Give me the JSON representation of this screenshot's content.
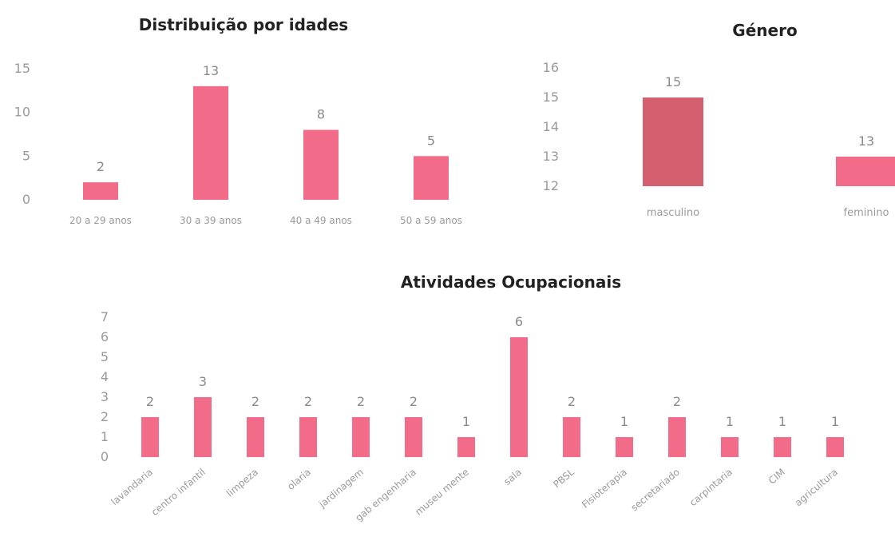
{
  "chart_data": [
    {
      "type": "bar",
      "title": "Distribuição por idades",
      "categories": [
        "20 a 29 anos",
        "30 a 39 anos",
        "40 a 49 anos",
        "50 a 59 anos"
      ],
      "values": [
        2,
        13,
        8,
        5
      ],
      "data_labels": [
        "2",
        "13",
        "8",
        "5"
      ],
      "yticks": [
        "0",
        "5",
        "10",
        "15"
      ],
      "ylim": [
        0,
        15
      ],
      "color": "#f26b88",
      "grid": false,
      "legend": "none"
    },
    {
      "type": "bar",
      "title": "Género",
      "categories": [
        "masculino",
        "feminino"
      ],
      "values": [
        15,
        13
      ],
      "data_labels": [
        "15",
        "13"
      ],
      "yticks": [
        "12",
        "13",
        "14",
        "15",
        "16"
      ],
      "ylim": [
        12,
        16
      ],
      "colors": [
        "#d4606f",
        "#f26b88"
      ],
      "grid": false,
      "legend": "none"
    },
    {
      "type": "bar",
      "title": "Atividades Ocupacionais",
      "categories": [
        "lavandaria",
        "centro infantil",
        "limpeza",
        "olaria",
        "jardinagem",
        "gab engenharia",
        "museu mente",
        "sala",
        "PBSL",
        "Fisioterapia",
        "secretariado",
        "carpintaria",
        "CIM",
        "agricultura"
      ],
      "values": [
        2,
        3,
        2,
        2,
        2,
        2,
        1,
        6,
        2,
        1,
        2,
        1,
        1,
        1
      ],
      "data_labels": [
        "2",
        "3",
        "2",
        "2",
        "2",
        "2",
        "1",
        "6",
        "2",
        "1",
        "2",
        "1",
        "1",
        "1"
      ],
      "yticks": [
        "0",
        "1",
        "2",
        "3",
        "4",
        "5",
        "6",
        "7"
      ],
      "ylim": [
        0,
        7
      ],
      "color": "#f26b88",
      "grid": false,
      "legend": "none"
    }
  ]
}
